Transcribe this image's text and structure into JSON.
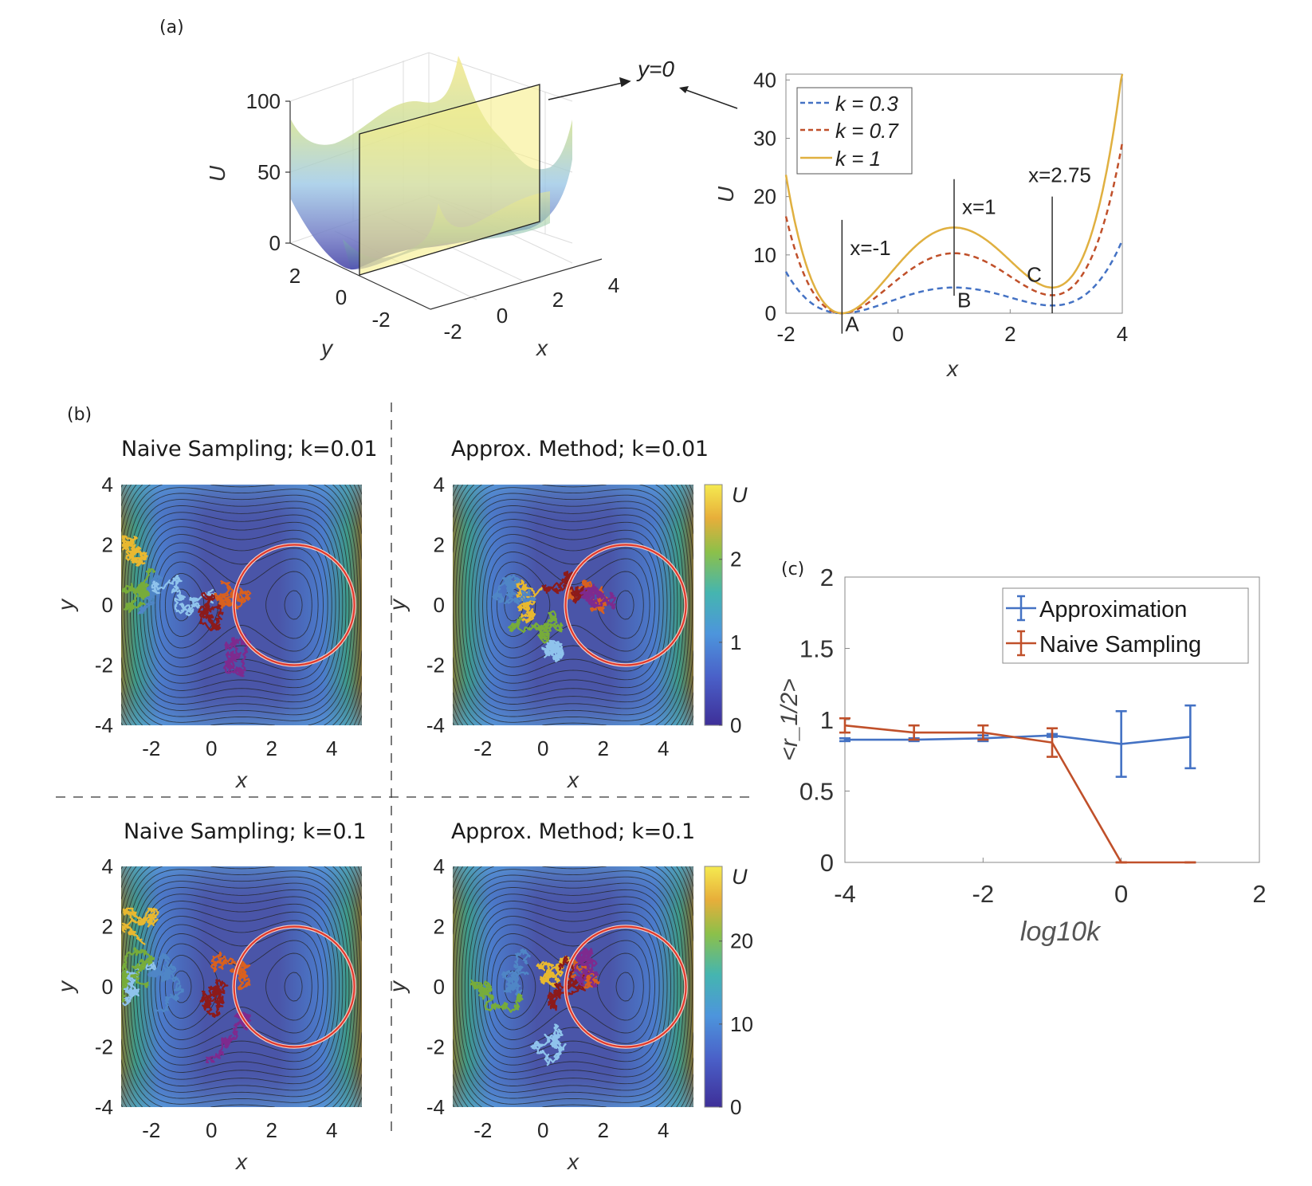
{
  "panels": {
    "a_label": "(a)",
    "b_label": "(b)",
    "c_label": "(c)",
    "slice_annotation": "y=0"
  },
  "chart_data": [
    {
      "id": "a-surface",
      "type": "surface3d",
      "title": "",
      "xlabel": "x",
      "ylabel": "y",
      "zlabel": "U",
      "xticks": [
        "-2",
        "0",
        "2",
        "4"
      ],
      "yticks": [
        "2",
        "0",
        "-2"
      ],
      "zticks": [
        "0",
        "50",
        "100"
      ],
      "xlim": [
        -2,
        4
      ],
      "ylim": [
        -3,
        3
      ],
      "zlim": [
        0,
        100
      ],
      "slice_plane": "y=0",
      "colormap": "parula"
    },
    {
      "id": "a-slice",
      "type": "line",
      "xlabel": "x",
      "ylabel": "U",
      "xlim": [
        -2,
        4
      ],
      "ylim": [
        0,
        41
      ],
      "xticks": [
        "-2",
        "0",
        "2",
        "4"
      ],
      "yticks": [
        "0",
        "10",
        "20",
        "30",
        "40"
      ],
      "legend": "top-left",
      "series": [
        {
          "name": "k = 0.3",
          "color": "#4472c4",
          "style": "dashed",
          "k": 0.3
        },
        {
          "name": "k = 0.7",
          "color": "#c0502a",
          "style": "dashed",
          "k": 0.7
        },
        {
          "name": "k = 1",
          "color": "#e0b040",
          "style": "solid",
          "k": 1
        }
      ],
      "key_points": [
        {
          "x": -1,
          "U_k1": 0,
          "label": "A",
          "annotation": "x=-1"
        },
        {
          "x": 1,
          "U_k03": 4.4,
          "U_k07": 10.3,
          "U_k1": 14.7,
          "label": "B",
          "annotation": "x=1"
        },
        {
          "x": 2.75,
          "U_k03": 1.3,
          "U_k07": 3.0,
          "U_k1": 4.3,
          "label": "C",
          "annotation": "x=2.75"
        }
      ],
      "edge_values": {
        "x_-2": {
          "k0.3": 7,
          "k0.7": 16.5,
          "k1": 23.5
        },
        "x_4": {
          "k0.3": 12,
          "k0.7": 28.5,
          "k1": 41
        }
      }
    },
    {
      "id": "b-naive-001",
      "type": "heatmap",
      "title": "Naive Sampling; k=0.01",
      "xlabel": "x",
      "ylabel": "y",
      "xlim": [
        -3,
        5
      ],
      "ylim": [
        -4,
        4
      ],
      "xticks": [
        "-2",
        "0",
        "2",
        "4"
      ],
      "yticks": [
        "-4",
        "-2",
        "0",
        "2",
        "4"
      ],
      "target_circle": {
        "cx": 2.75,
        "cy": 0,
        "r": 2
      }
    },
    {
      "id": "b-approx-001",
      "type": "heatmap",
      "title": "Approx. Method; k=0.01",
      "xlabel": "x",
      "ylabel": "y",
      "xlim": [
        -3,
        5
      ],
      "ylim": [
        -4,
        4
      ],
      "xticks": [
        "-2",
        "0",
        "2",
        "4"
      ],
      "yticks": [
        "-4",
        "-2",
        "0",
        "2",
        "4"
      ],
      "colorbar": {
        "label": "U",
        "ticks": [
          "0",
          "1",
          "2"
        ],
        "range": [
          0,
          2.9
        ]
      },
      "target_circle": {
        "cx": 2.75,
        "cy": 0,
        "r": 2
      }
    },
    {
      "id": "b-naive-01",
      "type": "heatmap",
      "title": "Naive Sampling; k=0.1",
      "xlabel": "x",
      "ylabel": "y",
      "xlim": [
        -3,
        5
      ],
      "ylim": [
        -4,
        4
      ],
      "xticks": [
        "-2",
        "0",
        "2",
        "4"
      ],
      "yticks": [
        "-4",
        "-2",
        "0",
        "2",
        "4"
      ],
      "target_circle": {
        "cx": 2.75,
        "cy": 0,
        "r": 2
      }
    },
    {
      "id": "b-approx-01",
      "type": "heatmap",
      "title": "Approx. Method; k=0.1",
      "xlabel": "x",
      "ylabel": "y",
      "xlim": [
        -3,
        5
      ],
      "ylim": [
        -4,
        4
      ],
      "xticks": [
        "-2",
        "0",
        "2",
        "4"
      ],
      "yticks": [
        "-4",
        "-2",
        "0",
        "2",
        "4"
      ],
      "colorbar": {
        "label": "U",
        "ticks": [
          "0",
          "10",
          "20"
        ],
        "range": [
          0,
          29
        ]
      },
      "target_circle": {
        "cx": 2.75,
        "cy": 0,
        "r": 2
      }
    },
    {
      "id": "c-errorbar",
      "type": "line",
      "title": "",
      "xlabel": "log10k",
      "ylabel": "<r_1/2>",
      "xlim": [
        -4,
        2
      ],
      "ylim": [
        0,
        2
      ],
      "xticks": [
        "-4",
        "-2",
        "0",
        "2"
      ],
      "yticks": [
        "0",
        "0.5",
        "1",
        "1.5",
        "2"
      ],
      "legend": "top-right",
      "x": [
        -4,
        -3,
        -2,
        -1,
        0,
        1
      ],
      "series": [
        {
          "name": "Approximation",
          "color": "#4472c4",
          "values": [
            0.86,
            0.86,
            0.87,
            0.89,
            0.83,
            0.88
          ],
          "errors": [
            0.01,
            0.01,
            0.02,
            0.01,
            0.23,
            0.22
          ]
        },
        {
          "name": "Naive Sampling",
          "color": "#c0502a",
          "values": [
            0.96,
            0.91,
            0.91,
            0.84,
            0.0,
            0.0
          ],
          "errors": [
            0.05,
            0.05,
            0.05,
            0.1,
            0.0,
            0.0
          ]
        }
      ]
    }
  ]
}
